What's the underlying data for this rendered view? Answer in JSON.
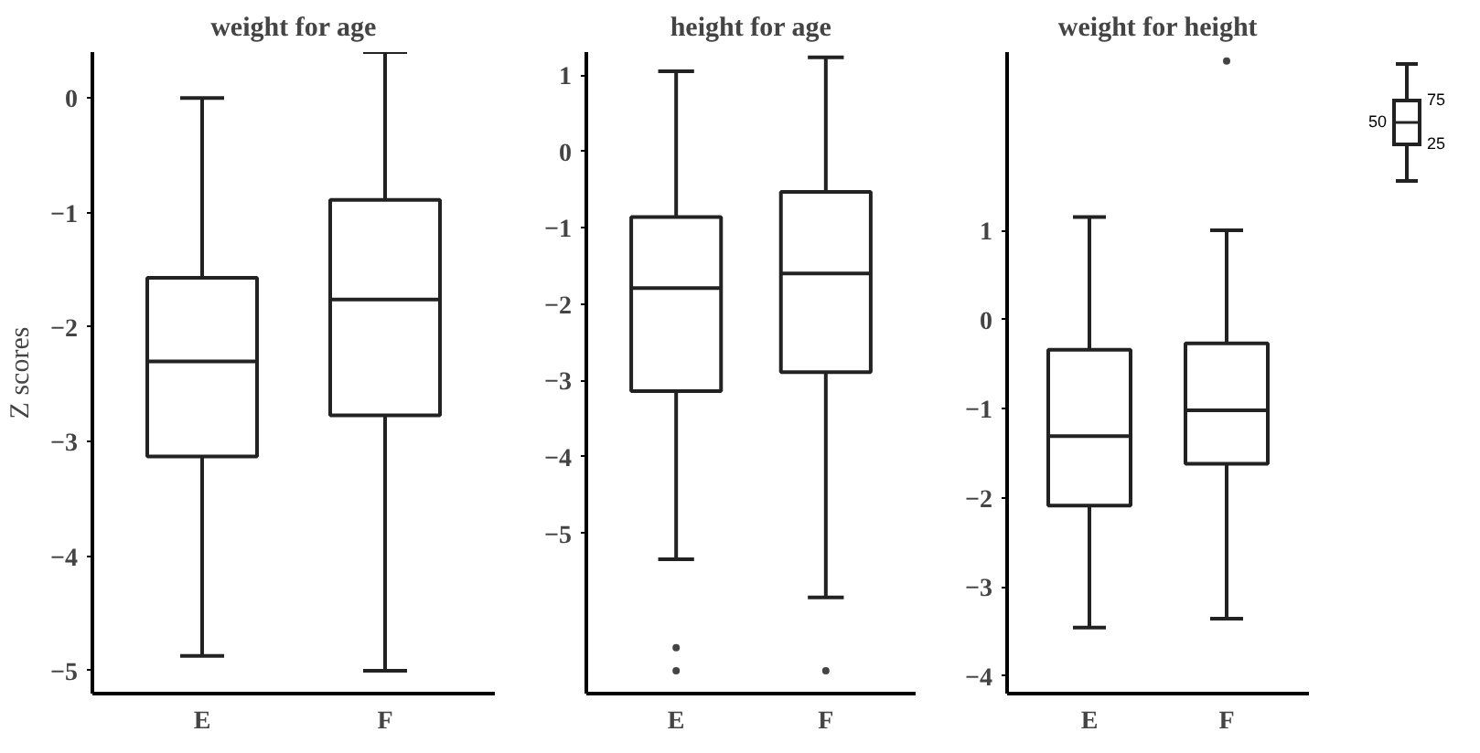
{
  "chart_data": [
    {
      "type": "box",
      "title": "weight for age",
      "ylabel": "Z scores",
      "categories": [
        "E",
        "F"
      ],
      "ylim": [
        -5.2,
        0.4
      ],
      "yticks": [
        0,
        -1,
        -2,
        -3,
        -4,
        -5
      ],
      "grid": false,
      "boxes": [
        {
          "low": -4.87,
          "q1": -3.13,
          "median": -2.3,
          "q3": -1.57,
          "high": 0
        },
        {
          "low": -5.0,
          "q1": -2.77,
          "median": -1.76,
          "q3": -0.89,
          "high": 0.4
        }
      ]
    },
    {
      "type": "box",
      "title": "height for age",
      "categories": [
        "E",
        "F"
      ],
      "ylim": [
        -7.1,
        1.3
      ],
      "yticks": [
        1,
        0,
        -1,
        -2,
        -3,
        -4,
        -5
      ],
      "grid": false,
      "boxes": [
        {
          "low": -5.34,
          "q1": -3.14,
          "median": -1.79,
          "q3": -0.86,
          "high": 1.05,
          "outliers": [
            -6.5,
            -6.8
          ]
        },
        {
          "low": -5.84,
          "q1": -2.89,
          "median": -1.6,
          "q3": -0.53,
          "high": 1.23,
          "outliers": [
            -6.8
          ]
        }
      ]
    },
    {
      "type": "box",
      "title": "weight for height",
      "categories": [
        "E",
        "F"
      ],
      "ylim": [
        -4.2,
        3.0
      ],
      "yticks": [
        1,
        0,
        -1,
        -2,
        -3,
        -4
      ],
      "grid": false,
      "boxes": [
        {
          "low": -3.46,
          "q1": -2.09,
          "median": -1.31,
          "q3": -0.34,
          "high": 1.15
        },
        {
          "low": -3.36,
          "q1": -1.62,
          "median": -1.02,
          "q3": -0.27,
          "high": 1.0,
          "outliers": [
            2.9
          ]
        }
      ]
    },
    {
      "type": "other",
      "annotations": [
        "75",
        "50",
        "25"
      ]
    }
  ]
}
